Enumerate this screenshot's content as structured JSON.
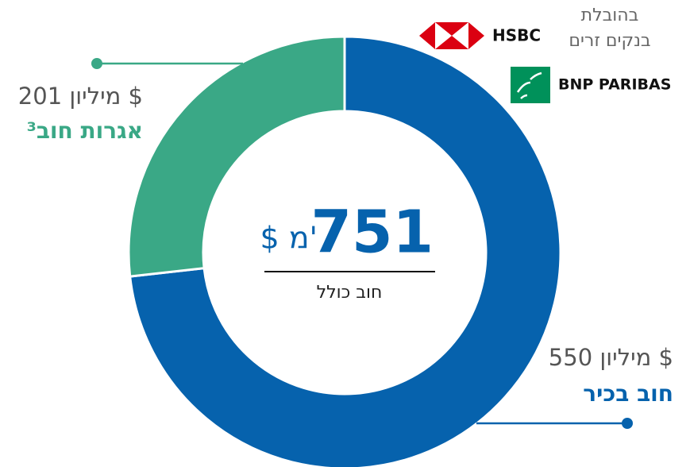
{
  "chart_data": {
    "type": "donut",
    "categories": [
      "חוב בכיר",
      "אגרות חוב³"
    ],
    "values": [
      550,
      201
    ],
    "value_labels": [
      "550 מיליון $",
      "201 מיליון $"
    ],
    "colors": [
      "#0662ad",
      "#3aa886"
    ],
    "total": 751,
    "total_unit": "$ מ'",
    "total_label": "חוב כולל",
    "lead_text": [
      "בהובלת",
      "בנקים זרים"
    ],
    "banks": [
      "HSBC",
      "BNP PARIBAS"
    ]
  }
}
